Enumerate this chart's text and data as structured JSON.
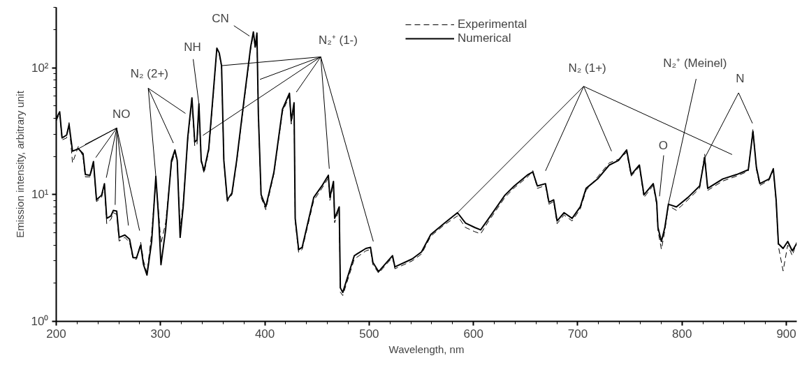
{
  "chart_data": {
    "type": "line",
    "xlabel": "Wavelength, nm",
    "ylabel": "Emission intensity, arbitrary unit",
    "log": "y",
    "grid": false,
    "legend": "top",
    "xlim": [
      200,
      910
    ],
    "xticks": [
      200,
      300,
      400,
      500,
      600,
      700,
      800,
      900
    ],
    "ylim": [
      1,
      300
    ],
    "yticks": [
      {
        "value": 1,
        "label": "10⁰"
      },
      {
        "value": 10,
        "label": "10¹"
      },
      {
        "value": 100,
        "label": "10²"
      }
    ],
    "x": [
      200,
      203.3,
      205.6,
      210,
      212.3,
      215.6,
      221.2,
      225.7,
      227.9,
      232.4,
      235.7,
      238.6,
      243.5,
      246.2,
      248.4,
      252.5,
      254.7,
      258,
      260.3,
      265.8,
      270.3,
      273.7,
      277,
      281,
      283.7,
      287,
      291.5,
      295.5,
      298.2,
      300.4,
      304.9,
      310.5,
      313.8,
      316,
      318.8,
      321.7,
      326.1,
      330.1,
      332.8,
      335,
      336.8,
      339,
      341.7,
      346.2,
      350.7,
      354,
      356.3,
      358.5,
      360.7,
      364,
      368.5,
      373,
      379.7,
      386.4,
      389,
      390.8,
      392.4,
      393.8,
      396.4,
      400.9,
      408.7,
      416.9,
      423.6,
      425.3,
      428,
      429.1,
      432.4,
      435.8,
      446.9,
      454.7,
      460.9,
      462.4,
      465.8,
      466.9,
      471.3,
      472.4,
      474.7,
      485.8,
      496.9,
      501.3,
      503.6,
      509.1,
      522.4,
      524.7,
      541.3,
      550.2,
      559.1,
      572.4,
      584.7,
      592.4,
      601.3,
      606.9,
      614.7,
      630.2,
      639.1,
      652.4,
      656.9,
      661.3,
      669.1,
      672.4,
      676.9,
      680.2,
      686.9,
      694.6,
      702.4,
      708,
      719.1,
      730.2,
      739.1,
      746.9,
      751.3,
      759.1,
      763.5,
      772.4,
      775.7,
      776.9,
      780.2,
      783.5,
      786.9,
      794.6,
      805.7,
      816.9,
      821.7,
      824.6,
      839.1,
      852.4,
      863.5,
      868,
      871.3,
      874.6,
      883.5,
      887.5,
      890.2,
      892.4,
      896.9,
      901.3,
      905.7,
      909.8
    ],
    "series": [
      {
        "name": "Experimental",
        "color": "#000000",
        "line_style": "dashed",
        "values": [
          38,
          44,
          27,
          28,
          37,
          17.8,
          24,
          20,
          13.8,
          13.8,
          17.5,
          8.8,
          9.5,
          11.8,
          5.9,
          6.4,
          7.2,
          7.0,
          4.3,
          4.6,
          4.2,
          3.1,
          3.1,
          4.2,
          3.0,
          2.4,
          5.0,
          13.0,
          7.2,
          4.1,
          6.0,
          17.5,
          21.5,
          18,
          5.4,
          8.6,
          27,
          55,
          24,
          25,
          50,
          18,
          14.8,
          22,
          62,
          140,
          128,
          101,
          18,
          8.8,
          10,
          18,
          51,
          140,
          185,
          142,
          180,
          42,
          9.5,
          7.6,
          14.6,
          45,
          60,
          36,
          50,
          6.2,
          3.5,
          3.7,
          9.0,
          11.2,
          13.5,
          9.0,
          12.2,
          6.0,
          7.7,
          1.7,
          1.6,
          3.1,
          3.6,
          3.7,
          2.8,
          2.4,
          3.2,
          2.6,
          3.0,
          3.4,
          4.7,
          5.8,
          6.8,
          5.5,
          5.1,
          4.9,
          6.2,
          9.5,
          11.3,
          13.9,
          15.5,
          11.2,
          11.8,
          8.4,
          8.8,
          5.9,
          6.9,
          6.2,
          7.7,
          10.8,
          13.8,
          17.8,
          19,
          21.5,
          14,
          16.6,
          9.5,
          11.8,
          8.3,
          5.2,
          3.7,
          5.2,
          8.2,
          7.5,
          9.1,
          11.2,
          21,
          10.8,
          12.8,
          14,
          15.3,
          33,
          15.8,
          11.8,
          13,
          15.6,
          8.8,
          3.9,
          2.5,
          4.0,
          3.3,
          4.2
        ]
      },
      {
        "name": "Numerical",
        "color": "#000000",
        "line_style": "solid",
        "values": [
          39.6,
          45,
          28,
          29.5,
          35.7,
          22,
          23,
          21,
          14.4,
          14.2,
          18.2,
          9.1,
          9.9,
          12.2,
          6.5,
          6.8,
          7.5,
          7.4,
          4.6,
          4.8,
          4.45,
          3.18,
          3.18,
          4.0,
          2.8,
          2.32,
          4.27,
          13.9,
          6.5,
          2.8,
          5.3,
          18.6,
          22.5,
          18.6,
          4.6,
          8.0,
          28.3,
          58,
          26,
          27,
          52,
          18.6,
          15.4,
          23,
          65.6,
          143,
          131,
          104,
          18.6,
          9.1,
          10.3,
          18.6,
          53,
          146,
          192,
          146,
          188,
          43,
          10,
          8.0,
          15,
          47,
          63,
          38,
          53,
          6.5,
          3.68,
          3.84,
          9.5,
          11.7,
          14.2,
          9.5,
          12.7,
          6.5,
          8.0,
          1.84,
          1.69,
          3.3,
          3.76,
          3.84,
          2.92,
          2.47,
          3.3,
          2.69,
          3.11,
          3.53,
          4.84,
          5.97,
          7.2,
          5.97,
          5.5,
          5.27,
          6.5,
          9.9,
          11.7,
          14.4,
          15.1,
          11.7,
          12.2,
          8.7,
          9.1,
          6.2,
          7.2,
          6.5,
          8.0,
          11.2,
          13.3,
          17.1,
          18.6,
          22.5,
          14.4,
          17.1,
          9.95,
          12.2,
          8.7,
          5.5,
          4.27,
          5.5,
          8.4,
          8.0,
          9.5,
          11.7,
          19.4,
          11.2,
          13.3,
          14.4,
          15.7,
          31.5,
          16.4,
          12.2,
          13.3,
          16,
          9.1,
          4.1,
          3.76,
          4.27,
          3.6,
          4.1
        ]
      }
    ],
    "annotations": [
      {
        "text": "NO",
        "x": 221.2,
        "y": 23
      },
      {
        "text": "N₂ (2+)",
        "x": 295.5,
        "y": 13.9
      },
      {
        "text": "NH",
        "x": 336.8,
        "y": 52
      },
      {
        "text": "CN",
        "x": 385.3,
        "y": 178
      },
      {
        "text": "N₂⁺ (1-)",
        "x": 358.5,
        "y": 104
      },
      {
        "text": "N₂ (1+)",
        "x": 584.7,
        "y": 7.2
      },
      {
        "text": "O",
        "x": 778.4,
        "y": 9.7
      },
      {
        "text": "N₂⁺ (Meinel)",
        "x": 786.9,
        "y": 8.4
      },
      {
        "text": "N",
        "x": 821.7,
        "y": 19.4
      }
    ]
  }
}
